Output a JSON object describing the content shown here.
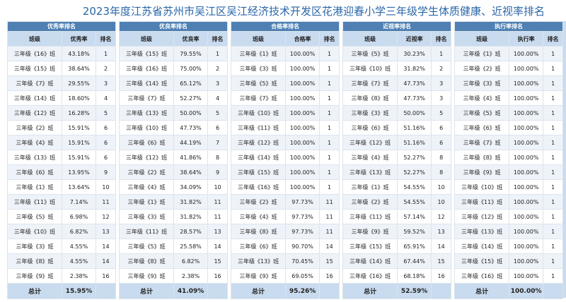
{
  "title": "2023年度江苏省苏州市吴江区吴江经济技术开发区花港迎春小学三年级学生体质健康、近视率排名",
  "tables": [
    {
      "title": "优秀率排名",
      "headers": [
        "班级",
        "优秀率",
        "排名"
      ],
      "rows": [
        [
          "三年级《16》班",
          "43.18%",
          1
        ],
        [
          "三年级《15》班",
          "38.64%",
          2
        ],
        [
          "三年级《7》班",
          "29.55%",
          3
        ],
        [
          "三年级《14》班",
          "18.60%",
          4
        ],
        [
          "三年级《12》班",
          "16.28%",
          5
        ],
        [
          "三年级《2》班",
          "15.91%",
          6
        ],
        [
          "三年级《4》班",
          "15.91%",
          6
        ],
        [
          "三年级《13》班",
          "15.91%",
          6
        ],
        [
          "三年级《6》班",
          "13.95%",
          9
        ],
        [
          "三年级《1》班",
          "13.64%",
          10
        ],
        [
          "三年级《11》班",
          "7.14%",
          11
        ],
        [
          "三年级《5》班",
          "6.98%",
          12
        ],
        [
          "三年级《10》班",
          "6.82%",
          13
        ],
        [
          "三年级《3》班",
          "4.55%",
          14
        ],
        [
          "三年级《8》班",
          "4.55%",
          14
        ],
        [
          "三年级《9》班",
          "2.38%",
          16
        ]
      ],
      "total": [
        "总计",
        "15.95%"
      ]
    },
    {
      "title": "优良率排名",
      "headers": [
        "班级",
        "优良率",
        "排名"
      ],
      "rows": [
        [
          "三年级《15》班",
          "79.55%",
          1
        ],
        [
          "三年级《16》班",
          "75.00%",
          2
        ],
        [
          "三年级《14》班",
          "65.12%",
          3
        ],
        [
          "三年级《7》班",
          "52.27%",
          4
        ],
        [
          "三年级《13》班",
          "50.00%",
          5
        ],
        [
          "三年级《10》班",
          "47.73%",
          6
        ],
        [
          "三年级《6》班",
          "44.19%",
          7
        ],
        [
          "三年级《12》班",
          "41.86%",
          8
        ],
        [
          "三年级《2》班",
          "38.64%",
          9
        ],
        [
          "三年级《4》班",
          "34.09%",
          10
        ],
        [
          "三年级《1》班",
          "31.82%",
          11
        ],
        [
          "三年级《3》班",
          "31.82%",
          11
        ],
        [
          "三年级《11》班",
          "28.57%",
          13
        ],
        [
          "三年级《5》班",
          "25.58%",
          14
        ],
        [
          "三年级《8》班",
          "6.82%",
          15
        ],
        [
          "三年级《9》班",
          "2.38%",
          16
        ]
      ],
      "total": [
        "总计",
        "41.09%"
      ]
    },
    {
      "title": "合格率排名",
      "headers": [
        "班级",
        "合格率",
        "排名"
      ],
      "rows": [
        [
          "三年级《1》班",
          "100.00%",
          1
        ],
        [
          "三年级《3》班",
          "100.00%",
          1
        ],
        [
          "三年级《5》班",
          "100.00%",
          1
        ],
        [
          "三年级《7》班",
          "100.00%",
          1
        ],
        [
          "三年级《10》班",
          "100.00%",
          1
        ],
        [
          "三年级《11》班",
          "100.00%",
          1
        ],
        [
          "三年级《12》班",
          "100.00%",
          1
        ],
        [
          "三年级《14》班",
          "100.00%",
          1
        ],
        [
          "三年级《15》班",
          "100.00%",
          1
        ],
        [
          "三年级《16》班",
          "100.00%",
          1
        ],
        [
          "三年级《2》班",
          "97.73%",
          11
        ],
        [
          "三年级《4》班",
          "97.73%",
          11
        ],
        [
          "三年级《8》班",
          "97.73%",
          11
        ],
        [
          "三年级《6》班",
          "90.70%",
          14
        ],
        [
          "三年级《13》班",
          "70.45%",
          15
        ],
        [
          "三年级《9》班",
          "69.05%",
          16
        ]
      ],
      "total": [
        "总计",
        "95.26%"
      ]
    },
    {
      "title": "近视率排名",
      "headers": [
        "班级",
        "近视率",
        "排名"
      ],
      "rows": [
        [
          "三年级《5》班",
          "30.23%",
          1
        ],
        [
          "三年级《10》班",
          "31.82%",
          2
        ],
        [
          "三年级《7》班",
          "47.73%",
          3
        ],
        [
          "三年级《8》班",
          "47.73%",
          3
        ],
        [
          "三年级《3》班",
          "50.00%",
          5
        ],
        [
          "三年级《6》班",
          "51.16%",
          6
        ],
        [
          "三年级《12》班",
          "51.16%",
          6
        ],
        [
          "三年级《4》班",
          "52.27%",
          8
        ],
        [
          "三年级《13》班",
          "52.27%",
          8
        ],
        [
          "三年级《1》班",
          "54.55%",
          10
        ],
        [
          "三年级《2》班",
          "54.55%",
          10
        ],
        [
          "三年级《11》班",
          "57.14%",
          12
        ],
        [
          "三年级《9》班",
          "59.52%",
          13
        ],
        [
          "三年级《15》班",
          "65.91%",
          14
        ],
        [
          "三年级《14》班",
          "67.44%",
          15
        ],
        [
          "三年级《16》班",
          "68.18%",
          16
        ]
      ],
      "total": [
        "总计",
        "52.59%"
      ]
    },
    {
      "title": "执行率排名",
      "headers": [
        "班级",
        "执行率",
        "排名"
      ],
      "rows": [
        [
          "三年级《1》班",
          "100.00%",
          1
        ],
        [
          "三年级《2》班",
          "100.00%",
          1
        ],
        [
          "三年级《3》班",
          "100.00%",
          1
        ],
        [
          "三年级《4》班",
          "100.00%",
          1
        ],
        [
          "三年级《5》班",
          "100.00%",
          1
        ],
        [
          "三年级《6》班",
          "100.00%",
          1
        ],
        [
          "三年级《7》班",
          "100.00%",
          1
        ],
        [
          "三年级《8》班",
          "100.00%",
          1
        ],
        [
          "三年级《9》班",
          "100.00%",
          1
        ],
        [
          "三年级《10》班",
          "100.00%",
          1
        ],
        [
          "三年级《11》班",
          "100.00%",
          1
        ],
        [
          "三年级《12》班",
          "100.00%",
          1
        ],
        [
          "三年级《13》班",
          "100.00%",
          1
        ],
        [
          "三年级《14》班",
          "100.00%",
          1
        ],
        [
          "三年级《15》班",
          "100.00%",
          1
        ],
        [
          "三年级《16》班",
          "100.00%",
          1
        ]
      ],
      "total": [
        "总计",
        "100.00%"
      ]
    }
  ]
}
